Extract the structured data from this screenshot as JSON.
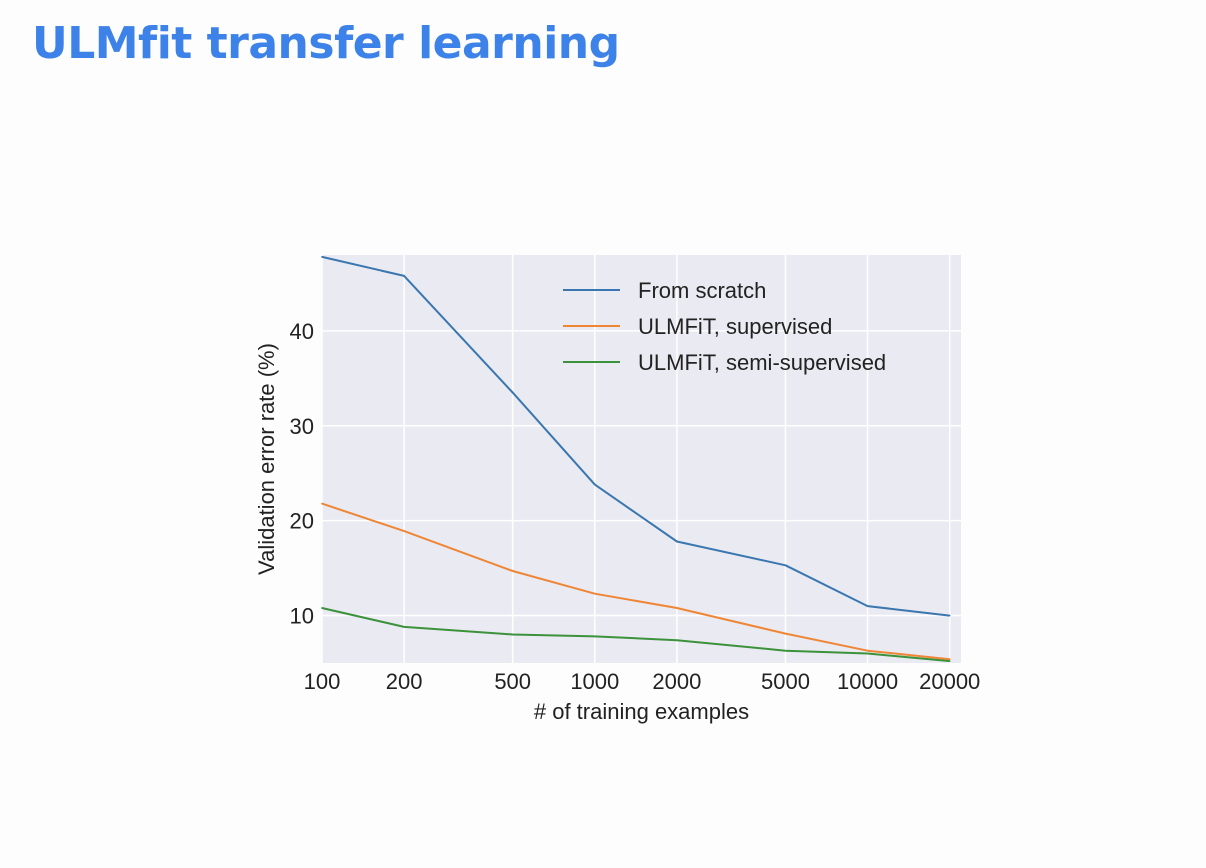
{
  "slide": {
    "title": "ULMfit transfer learning"
  },
  "chart_data": {
    "type": "line",
    "title": "",
    "xlabel": "# of training examples",
    "ylabel": "Validation error rate (%)",
    "x_scale": "log",
    "x": [
      100,
      200,
      500,
      1000,
      2000,
      5000,
      10000,
      20000
    ],
    "x_tick_labels": [
      "100",
      "200",
      "500",
      "1000",
      "2000",
      "5000",
      "10000",
      "20000"
    ],
    "y_ticks": [
      10,
      20,
      30,
      40
    ],
    "xlim": [
      100,
      22000
    ],
    "ylim": [
      5,
      48
    ],
    "grid": true,
    "legend_position": "top-right",
    "series": [
      {
        "name": "From scratch",
        "color": "#3a76af",
        "values": [
          47.8,
          45.8,
          33.5,
          23.8,
          17.8,
          15.3,
          11.0,
          10.0
        ]
      },
      {
        "name": "ULMFiT, supervised",
        "color": "#ef8636",
        "values": [
          21.8,
          18.9,
          14.7,
          12.3,
          10.8,
          8.1,
          6.3,
          5.4
        ]
      },
      {
        "name": "ULMFiT, semi-supervised",
        "color": "#3b923b",
        "values": [
          10.8,
          8.8,
          8.0,
          7.8,
          7.4,
          6.3,
          6.0,
          5.2
        ]
      }
    ]
  }
}
